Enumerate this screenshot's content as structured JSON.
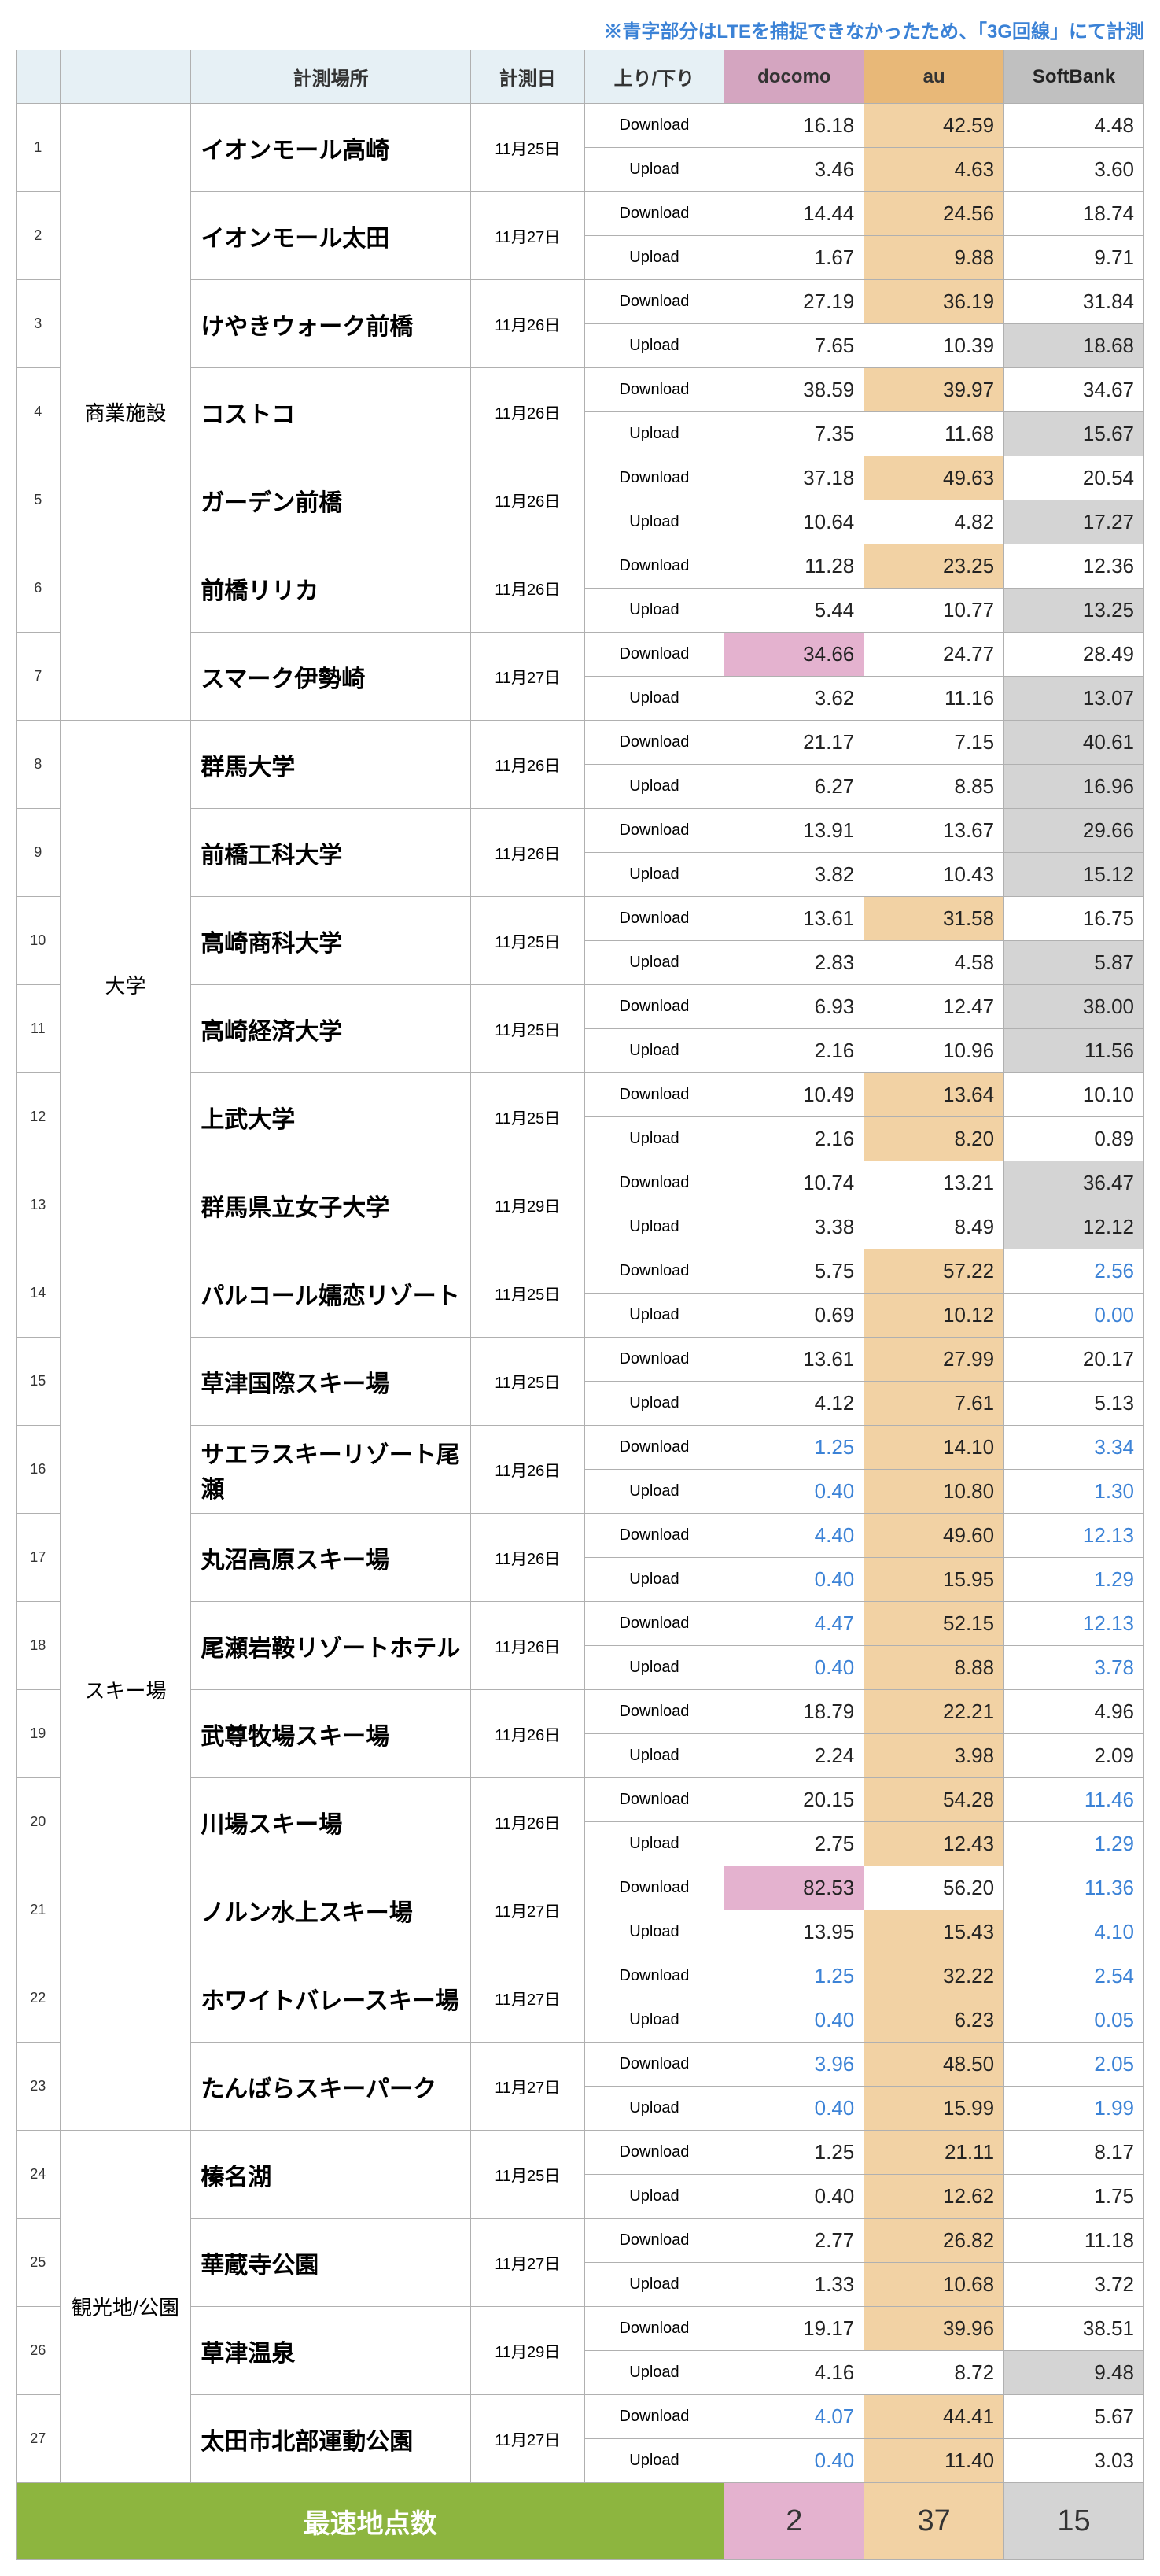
{
  "note": "※青字部分はLTEを捕捉できなかったため、「3G回線」にて計測",
  "headers": {
    "place": "計測場所",
    "date": "計測日",
    "direction": "上り/下り",
    "docomo": "docomo",
    "au": "au",
    "softbank": "SoftBank",
    "download": "Download",
    "upload": "Upload"
  },
  "colors": {
    "header_bg": "#e6f0f5",
    "docomo_hl": "#e4b2cf",
    "au_hl": "#f2d2a4",
    "sb_hl": "#d4d4d4",
    "footer_bg": "#8db53f",
    "blue_text": "#3b82d6"
  },
  "categories": [
    {
      "name": "商業施設",
      "rows": [
        {
          "idx": 1,
          "loc": "イオンモール高崎",
          "date": "11月25日",
          "dl": {
            "d": "16.18",
            "a": "42.59",
            "s": "4.48",
            "win": "au"
          },
          "ul": {
            "d": "3.46",
            "a": "4.63",
            "s": "3.60",
            "win": "au"
          }
        },
        {
          "idx": 2,
          "loc": "イオンモール太田",
          "date": "11月27日",
          "dl": {
            "d": "14.44",
            "a": "24.56",
            "s": "18.74",
            "win": "au"
          },
          "ul": {
            "d": "1.67",
            "a": "9.88",
            "s": "9.71",
            "win": "au"
          }
        },
        {
          "idx": 3,
          "loc": "けやきウォーク前橋",
          "date": "11月26日",
          "dl": {
            "d": "27.19",
            "a": "36.19",
            "s": "31.84",
            "win": "au"
          },
          "ul": {
            "d": "7.65",
            "a": "10.39",
            "s": "18.68",
            "win": "sb"
          }
        },
        {
          "idx": 4,
          "loc": "コストコ",
          "date": "11月26日",
          "dl": {
            "d": "38.59",
            "a": "39.97",
            "s": "34.67",
            "win": "au"
          },
          "ul": {
            "d": "7.35",
            "a": "11.68",
            "s": "15.67",
            "win": "sb"
          }
        },
        {
          "idx": 5,
          "loc": "ガーデン前橋",
          "date": "11月26日",
          "dl": {
            "d": "37.18",
            "a": "49.63",
            "s": "20.54",
            "win": "au"
          },
          "ul": {
            "d": "10.64",
            "a": "4.82",
            "s": "17.27",
            "win": "sb"
          }
        },
        {
          "idx": 6,
          "loc": "前橋リリカ",
          "date": "11月26日",
          "dl": {
            "d": "11.28",
            "a": "23.25",
            "s": "12.36",
            "win": "au"
          },
          "ul": {
            "d": "5.44",
            "a": "10.77",
            "s": "13.25",
            "win": "sb"
          }
        },
        {
          "idx": 7,
          "loc": "スマーク伊勢崎",
          "date": "11月27日",
          "dl": {
            "d": "34.66",
            "a": "24.77",
            "s": "28.49",
            "win": "docomo"
          },
          "ul": {
            "d": "3.62",
            "a": "11.16",
            "s": "13.07",
            "win": "sb"
          }
        }
      ]
    },
    {
      "name": "大学",
      "rows": [
        {
          "idx": 8,
          "loc": "群馬大学",
          "date": "11月26日",
          "dl": {
            "d": "21.17",
            "a": "7.15",
            "s": "40.61",
            "win": "sb"
          },
          "ul": {
            "d": "6.27",
            "a": "8.85",
            "s": "16.96",
            "win": "sb"
          }
        },
        {
          "idx": 9,
          "loc": "前橋工科大学",
          "date": "11月26日",
          "dl": {
            "d": "13.91",
            "a": "13.67",
            "s": "29.66",
            "win": "sb"
          },
          "ul": {
            "d": "3.82",
            "a": "10.43",
            "s": "15.12",
            "win": "sb"
          }
        },
        {
          "idx": 10,
          "loc": "高崎商科大学",
          "date": "11月25日",
          "dl": {
            "d": "13.61",
            "a": "31.58",
            "s": "16.75",
            "win": "au"
          },
          "ul": {
            "d": "2.83",
            "a": "4.58",
            "s": "5.87",
            "win": "sb"
          }
        },
        {
          "idx": 11,
          "loc": "高崎経済大学",
          "date": "11月25日",
          "dl": {
            "d": "6.93",
            "a": "12.47",
            "s": "38.00",
            "win": "sb"
          },
          "ul": {
            "d": "2.16",
            "a": "10.96",
            "s": "11.56",
            "win": "sb"
          }
        },
        {
          "idx": 12,
          "loc": "上武大学",
          "date": "11月25日",
          "dl": {
            "d": "10.49",
            "a": "13.64",
            "s": "10.10",
            "win": "au"
          },
          "ul": {
            "d": "2.16",
            "a": "8.20",
            "s": "0.89",
            "win": "au"
          }
        },
        {
          "idx": 13,
          "loc": "群馬県立女子大学",
          "date": "11月29日",
          "dl": {
            "d": "10.74",
            "a": "13.21",
            "s": "36.47",
            "win": "sb"
          },
          "ul": {
            "d": "3.38",
            "a": "8.49",
            "s": "12.12",
            "win": "sb"
          }
        }
      ]
    },
    {
      "name": "スキー場",
      "rows": [
        {
          "idx": 14,
          "loc": "パルコール嬬恋リゾート",
          "date": "11月25日",
          "dl": {
            "d": "5.75",
            "a": "57.22",
            "s": "2.56",
            "s_blue": true,
            "win": "au"
          },
          "ul": {
            "d": "0.69",
            "a": "10.12",
            "s": "0.00",
            "s_blue": true,
            "win": "au"
          }
        },
        {
          "idx": 15,
          "loc": "草津国際スキー場",
          "date": "11月25日",
          "dl": {
            "d": "13.61",
            "a": "27.99",
            "s": "20.17",
            "win": "au"
          },
          "ul": {
            "d": "4.12",
            "a": "7.61",
            "s": "5.13",
            "win": "au"
          }
        },
        {
          "idx": 16,
          "loc": "サエラスキーリゾート尾瀬",
          "date": "11月26日",
          "dl": {
            "d": "1.25",
            "d_blue": true,
            "a": "14.10",
            "s": "3.34",
            "s_blue": true,
            "win": "au"
          },
          "ul": {
            "d": "0.40",
            "d_blue": true,
            "a": "10.80",
            "s": "1.30",
            "s_blue": true,
            "win": "au"
          }
        },
        {
          "idx": 17,
          "loc": "丸沼高原スキー場",
          "date": "11月26日",
          "dl": {
            "d": "4.40",
            "d_blue": true,
            "a": "49.60",
            "s": "12.13",
            "s_blue": true,
            "win": "au"
          },
          "ul": {
            "d": "0.40",
            "d_blue": true,
            "a": "15.95",
            "s": "1.29",
            "s_blue": true,
            "win": "au"
          }
        },
        {
          "idx": 18,
          "loc": "尾瀬岩鞍リゾートホテル",
          "date": "11月26日",
          "dl": {
            "d": "4.47",
            "d_blue": true,
            "a": "52.15",
            "s": "12.13",
            "s_blue": true,
            "win": "au"
          },
          "ul": {
            "d": "0.40",
            "d_blue": true,
            "a": "8.88",
            "s": "3.78",
            "s_blue": true,
            "win": "au"
          }
        },
        {
          "idx": 19,
          "loc": "武尊牧場スキー場",
          "date": "11月26日",
          "dl": {
            "d": "18.79",
            "a": "22.21",
            "s": "4.96",
            "win": "au"
          },
          "ul": {
            "d": "2.24",
            "a": "3.98",
            "s": "2.09",
            "win": "au"
          }
        },
        {
          "idx": 20,
          "loc": "川場スキー場",
          "date": "11月26日",
          "dl": {
            "d": "20.15",
            "a": "54.28",
            "s": "11.46",
            "s_blue": true,
            "win": "au"
          },
          "ul": {
            "d": "2.75",
            "a": "12.43",
            "s": "1.29",
            "s_blue": true,
            "win": "au"
          }
        },
        {
          "idx": 21,
          "loc": "ノルン水上スキー場",
          "date": "11月27日",
          "dl": {
            "d": "82.53",
            "a": "56.20",
            "s": "11.36",
            "s_blue": true,
            "win": "docomo"
          },
          "ul": {
            "d": "13.95",
            "a": "15.43",
            "s": "4.10",
            "s_blue": true,
            "win": "au"
          }
        },
        {
          "idx": 22,
          "loc": "ホワイトバレースキー場",
          "date": "11月27日",
          "dl": {
            "d": "1.25",
            "d_blue": true,
            "a": "32.22",
            "s": "2.54",
            "s_blue": true,
            "win": "au"
          },
          "ul": {
            "d": "0.40",
            "d_blue": true,
            "a": "6.23",
            "s": "0.05",
            "s_blue": true,
            "win": "au"
          }
        },
        {
          "idx": 23,
          "loc": "たんばらスキーパーク",
          "date": "11月27日",
          "dl": {
            "d": "3.96",
            "d_blue": true,
            "a": "48.50",
            "s": "2.05",
            "s_blue": true,
            "win": "au"
          },
          "ul": {
            "d": "0.40",
            "d_blue": true,
            "a": "15.99",
            "s": "1.99",
            "s_blue": true,
            "win": "au"
          }
        }
      ]
    },
    {
      "name": "観光地/公園",
      "rows": [
        {
          "idx": 24,
          "loc": "榛名湖",
          "date": "11月25日",
          "dl": {
            "d": "1.25",
            "a": "21.11",
            "s": "8.17",
            "win": "au"
          },
          "ul": {
            "d": "0.40",
            "a": "12.62",
            "s": "1.75",
            "win": "au"
          }
        },
        {
          "idx": 25,
          "loc": "華蔵寺公園",
          "date": "11月27日",
          "dl": {
            "d": "2.77",
            "a": "26.82",
            "s": "11.18",
            "win": "au"
          },
          "ul": {
            "d": "1.33",
            "a": "10.68",
            "s": "3.72",
            "win": "au"
          }
        },
        {
          "idx": 26,
          "loc": "草津温泉",
          "date": "11月29日",
          "dl": {
            "d": "19.17",
            "a": "39.96",
            "s": "38.51",
            "win": "au"
          },
          "ul": {
            "d": "4.16",
            "a": "8.72",
            "s": "9.48",
            "win": "sb"
          }
        },
        {
          "idx": 27,
          "loc": "太田市北部運動公園",
          "date": "11月27日",
          "dl": {
            "d": "4.07",
            "d_blue": true,
            "a": "44.41",
            "s": "5.67",
            "win": "au"
          },
          "ul": {
            "d": "0.40",
            "d_blue": true,
            "a": "11.40",
            "s": "3.03",
            "win": "au"
          }
        }
      ]
    }
  ],
  "footer": {
    "label": "最速地点数",
    "docomo": "2",
    "au": "37",
    "softbank": "15"
  }
}
